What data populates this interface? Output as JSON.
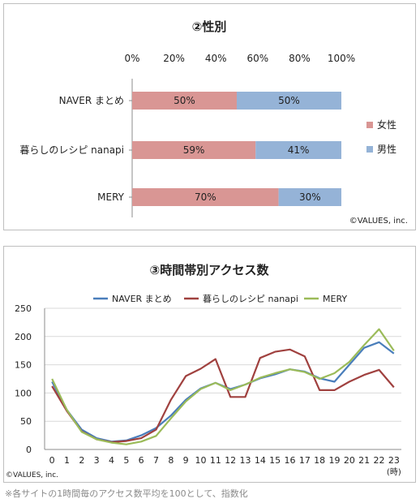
{
  "chart_data": [
    {
      "type": "bar",
      "stacked": true,
      "orientation": "horizontal",
      "title": "②性別",
      "categories": [
        "NAVER まとめ",
        "暮らしのレシピ nanapi",
        "MERY"
      ],
      "series": [
        {
          "name": "女性",
          "values": [
            50,
            59,
            70
          ],
          "labels": [
            "50%",
            "59%",
            "70%"
          ],
          "color": "#d99694"
        },
        {
          "name": "男性",
          "values": [
            50,
            41,
            30
          ],
          "labels": [
            "50%",
            "41%",
            "30%"
          ],
          "color": "#95b3d7"
        }
      ],
      "xlim": [
        0,
        100
      ],
      "xticks": [
        "0%",
        "20%",
        "40%",
        "60%",
        "80%",
        "100%"
      ],
      "xaxis_position": "top",
      "grid": false,
      "legend_position": "right",
      "credit": "©VALUES, inc."
    },
    {
      "type": "line",
      "title": "③時間帯別アクセス数",
      "x": [
        0,
        1,
        2,
        3,
        4,
        5,
        6,
        7,
        8,
        9,
        10,
        11,
        12,
        13,
        14,
        15,
        16,
        17,
        18,
        19,
        20,
        21,
        22,
        23
      ],
      "x_unit": "(時)",
      "ylim": [
        0,
        250
      ],
      "yticks": [
        "0",
        "50",
        "100",
        "150",
        "200",
        "250"
      ],
      "grid": true,
      "legend_position": "top",
      "series": [
        {
          "name": "NAVER まとめ",
          "color": "#4a7ebb",
          "values": [
            120,
            70,
            35,
            20,
            14,
            16,
            25,
            38,
            60,
            88,
            108,
            118,
            107,
            115,
            126,
            133,
            142,
            138,
            126,
            120,
            150,
            180,
            190,
            170
          ]
        },
        {
          "name": "暮らしのレシピ nanapi",
          "color": "#a0413f",
          "values": [
            112,
            68,
            32,
            18,
            13,
            15,
            20,
            35,
            88,
            130,
            143,
            160,
            93,
            93,
            162,
            173,
            177,
            165,
            105,
            105,
            120,
            132,
            141,
            110
          ]
        },
        {
          "name": "MERY",
          "color": "#9bbb59",
          "values": [
            125,
            70,
            31,
            18,
            12,
            9,
            14,
            24,
            55,
            85,
            107,
            118,
            105,
            115,
            127,
            135,
            142,
            137,
            125,
            135,
            155,
            185,
            213,
            175
          ]
        }
      ],
      "credit": "©VALUES, inc."
    }
  ],
  "footnote": "※各サイトの1時間毎のアクセス数平均を100として、指数化"
}
